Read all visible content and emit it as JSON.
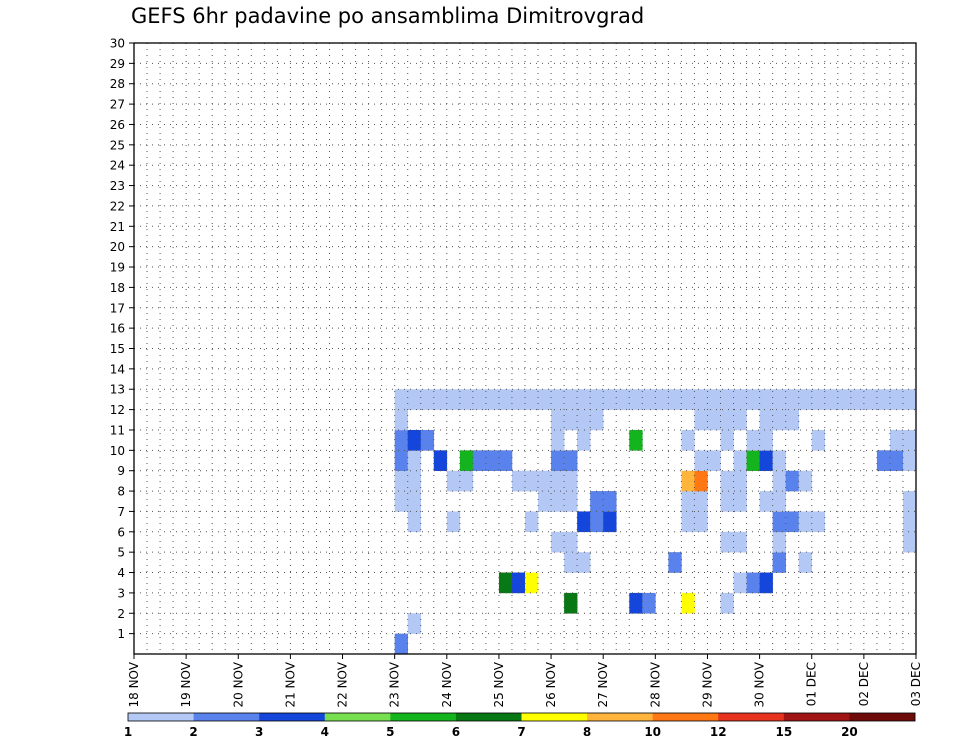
{
  "chart_data": {
    "type": "heatmap",
    "title": "GEFS 6hr padavine po ansamblima Dimitrovgrad",
    "y_ticks": [
      "1",
      "2",
      "3",
      "4",
      "5",
      "6",
      "7",
      "8",
      "9",
      "10",
      "11",
      "12",
      "13",
      "14",
      "15",
      "16",
      "17",
      "18",
      "19",
      "20",
      "21",
      "22",
      "23",
      "24",
      "25",
      "26",
      "27",
      "28",
      "29",
      "30"
    ],
    "x_ticks": [
      "18 NOV",
      "19 NOV",
      "20 NOV",
      "21 NOV",
      "22 NOV",
      "23 NOV",
      "24 NOV",
      "25 NOV",
      "26 NOV",
      "27 NOV",
      "28 NOV",
      "29 NOV",
      "30 NOV",
      "01 DEC",
      "02 DEC",
      "03 DEC"
    ],
    "steps_per_day": 4,
    "total_steps": 60,
    "ylim": [
      0,
      30
    ],
    "levels": [
      "1",
      "2",
      "3",
      "4",
      "5",
      "6",
      "7",
      "8",
      "10",
      "12",
      "15",
      "20"
    ],
    "colors": [
      "#b4c8f5",
      "#5a82ec",
      "#1446dc",
      "#78e050",
      "#14b41e",
      "#087814",
      "#ffff00",
      "#ffb43c",
      "#ff7814",
      "#e6321e",
      "#a01414",
      "#6e0a0a"
    ],
    "cells": [
      [
        1,
        20,
        2
      ],
      [
        2,
        21,
        1
      ],
      [
        3,
        33,
        6
      ],
      [
        3,
        38,
        3
      ],
      [
        3,
        39,
        2
      ],
      [
        3,
        42,
        7
      ],
      [
        3,
        45,
        1
      ],
      [
        4,
        28,
        6
      ],
      [
        4,
        29,
        3
      ],
      [
        4,
        30,
        7
      ],
      [
        4,
        46,
        1
      ],
      [
        4,
        47,
        2
      ],
      [
        4,
        48,
        3
      ],
      [
        5,
        33,
        1
      ],
      [
        5,
        34,
        1
      ],
      [
        5,
        41,
        2
      ],
      [
        5,
        49,
        2
      ],
      [
        5,
        51,
        1
      ],
      [
        6,
        32,
        1
      ],
      [
        6,
        33,
        1
      ],
      [
        6,
        45,
        1
      ],
      [
        6,
        46,
        1
      ],
      [
        6,
        49,
        1
      ],
      [
        6,
        59,
        1
      ],
      [
        7,
        21,
        1
      ],
      [
        7,
        24,
        1
      ],
      [
        7,
        30,
        1
      ],
      [
        7,
        34,
        3
      ],
      [
        7,
        35,
        2
      ],
      [
        7,
        36,
        3
      ],
      [
        7,
        42,
        1
      ],
      [
        7,
        43,
        1
      ],
      [
        7,
        49,
        2
      ],
      [
        7,
        50,
        2
      ],
      [
        7,
        51,
        1
      ],
      [
        7,
        52,
        1
      ],
      [
        7,
        59,
        1
      ],
      [
        8,
        20,
        1
      ],
      [
        8,
        21,
        1
      ],
      [
        8,
        31,
        1
      ],
      [
        8,
        32,
        1
      ],
      [
        8,
        33,
        1
      ],
      [
        8,
        35,
        2
      ],
      [
        8,
        36,
        2
      ],
      [
        8,
        42,
        1
      ],
      [
        8,
        43,
        1
      ],
      [
        8,
        45,
        1
      ],
      [
        8,
        46,
        1
      ],
      [
        8,
        48,
        1
      ],
      [
        8,
        49,
        1
      ],
      [
        8,
        59,
        1
      ],
      [
        9,
        20,
        1
      ],
      [
        9,
        21,
        1
      ],
      [
        9,
        24,
        1
      ],
      [
        9,
        25,
        1
      ],
      [
        9,
        29,
        1
      ],
      [
        9,
        30,
        1
      ],
      [
        9,
        31,
        1
      ],
      [
        9,
        32,
        1
      ],
      [
        9,
        33,
        1
      ],
      [
        9,
        42,
        8
      ],
      [
        9,
        43,
        9
      ],
      [
        9,
        45,
        1
      ],
      [
        9,
        46,
        1
      ],
      [
        9,
        49,
        1
      ],
      [
        9,
        50,
        2
      ],
      [
        9,
        51,
        1
      ],
      [
        10,
        20,
        2
      ],
      [
        10,
        21,
        1
      ],
      [
        10,
        23,
        3
      ],
      [
        10,
        25,
        5
      ],
      [
        10,
        26,
        2
      ],
      [
        10,
        27,
        2
      ],
      [
        10,
        28,
        2
      ],
      [
        10,
        32,
        2
      ],
      [
        10,
        33,
        2
      ],
      [
        10,
        43,
        1
      ],
      [
        10,
        44,
        1
      ],
      [
        10,
        46,
        1
      ],
      [
        10,
        47,
        5
      ],
      [
        10,
        48,
        3
      ],
      [
        10,
        49,
        1
      ],
      [
        10,
        57,
        2
      ],
      [
        10,
        58,
        2
      ],
      [
        10,
        59,
        1
      ],
      [
        11,
        20,
        2
      ],
      [
        11,
        21,
        3
      ],
      [
        11,
        22,
        2
      ],
      [
        11,
        32,
        1
      ],
      [
        11,
        34,
        1
      ],
      [
        11,
        38,
        5
      ],
      [
        11,
        42,
        1
      ],
      [
        11,
        45,
        1
      ],
      [
        11,
        47,
        1
      ],
      [
        11,
        48,
        1
      ],
      [
        11,
        52,
        1
      ],
      [
        11,
        58,
        1
      ],
      [
        11,
        59,
        1
      ],
      [
        12,
        20,
        1
      ],
      [
        12,
        32,
        1
      ],
      [
        12,
        33,
        1
      ],
      [
        12,
        34,
        1
      ],
      [
        12,
        35,
        1
      ],
      [
        12,
        43,
        1
      ],
      [
        12,
        44,
        1
      ],
      [
        12,
        45,
        1
      ],
      [
        12,
        46,
        1
      ],
      [
        12,
        48,
        1
      ],
      [
        12,
        49,
        1
      ],
      [
        12,
        50,
        1
      ],
      [
        13,
        20,
        1
      ],
      [
        13,
        21,
        1
      ],
      [
        13,
        22,
        1
      ],
      [
        13,
        23,
        1
      ],
      [
        13,
        24,
        1
      ],
      [
        13,
        25,
        1
      ],
      [
        13,
        26,
        1
      ],
      [
        13,
        27,
        1
      ],
      [
        13,
        28,
        1
      ],
      [
        13,
        29,
        1
      ],
      [
        13,
        30,
        1
      ],
      [
        13,
        31,
        1
      ],
      [
        13,
        32,
        1
      ],
      [
        13,
        33,
        1
      ],
      [
        13,
        34,
        1
      ],
      [
        13,
        35,
        1
      ],
      [
        13,
        36,
        1
      ],
      [
        13,
        37,
        1
      ],
      [
        13,
        38,
        1
      ],
      [
        13,
        39,
        1
      ],
      [
        13,
        40,
        1
      ],
      [
        13,
        41,
        1
      ],
      [
        13,
        42,
        1
      ],
      [
        13,
        43,
        1
      ],
      [
        13,
        44,
        1
      ],
      [
        13,
        45,
        1
      ],
      [
        13,
        46,
        1
      ],
      [
        13,
        47,
        1
      ],
      [
        13,
        48,
        1
      ],
      [
        13,
        49,
        1
      ],
      [
        13,
        50,
        1
      ],
      [
        13,
        51,
        1
      ],
      [
        13,
        52,
        1
      ],
      [
        13,
        53,
        1
      ],
      [
        13,
        54,
        1
      ],
      [
        13,
        55,
        1
      ],
      [
        13,
        56,
        1
      ],
      [
        13,
        57,
        1
      ],
      [
        13,
        58,
        1
      ],
      [
        13,
        59,
        1
      ]
    ]
  }
}
